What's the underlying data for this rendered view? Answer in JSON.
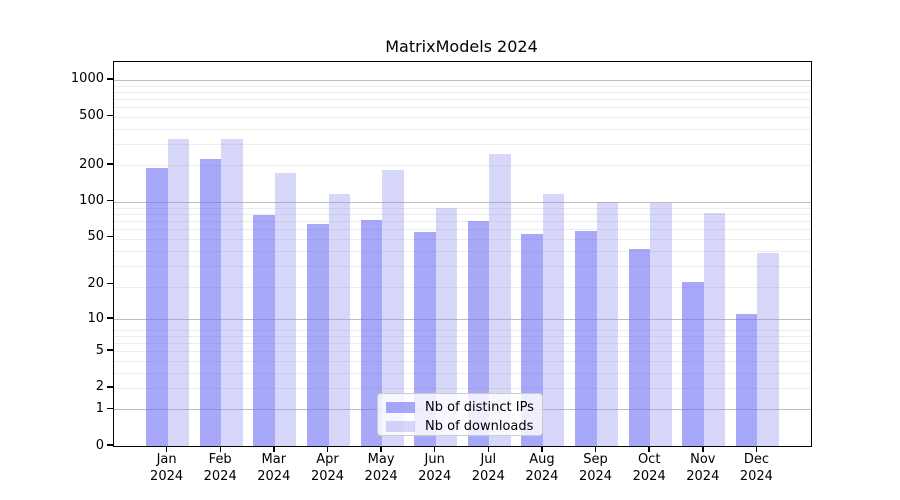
{
  "title": "MatrixModels 2024",
  "legend": {
    "position": "bottom-center-inside",
    "items": [
      {
        "label": "Nb of distinct IPs"
      },
      {
        "label": "Nb of downloads"
      }
    ]
  },
  "colors": {
    "distinct_ips_bar": "rgba(110,110,245,0.6)",
    "downloads_bar": "rgba(150,150,240,0.38)",
    "axis": "#000000",
    "grid_major": "#bdbdbd",
    "grid_minor": "#ececec",
    "legend_border": "#cccccc"
  },
  "chart_data": {
    "type": "bar",
    "title": "MatrixModels 2024",
    "xlabel": "",
    "ylabel": "",
    "y_scale": "log10(value+1)",
    "ylim": [
      0,
      1400
    ],
    "grid": true,
    "legend_position": "lower center inside plot",
    "categories": [
      {
        "month": "Jan",
        "year": "2024"
      },
      {
        "month": "Feb",
        "year": "2024"
      },
      {
        "month": "Mar",
        "year": "2024"
      },
      {
        "month": "Apr",
        "year": "2024"
      },
      {
        "month": "May",
        "year": "2024"
      },
      {
        "month": "Jun",
        "year": "2024"
      },
      {
        "month": "Jul",
        "year": "2024"
      },
      {
        "month": "Aug",
        "year": "2024"
      },
      {
        "month": "Sep",
        "year": "2024"
      },
      {
        "month": "Oct",
        "year": "2024"
      },
      {
        "month": "Nov",
        "year": "2024"
      },
      {
        "month": "Dec",
        "year": "2024"
      }
    ],
    "series": [
      {
        "key": "distinct-ips",
        "name": "Nb of distinct IPs",
        "color": "rgba(110,110,245,0.6)",
        "values": [
          190,
          225,
          78,
          65,
          70,
          56,
          69,
          54,
          57,
          40,
          21,
          11
        ]
      },
      {
        "key": "downloads",
        "name": "Nb of downloads",
        "color": "rgba(150,150,240,0.38)",
        "values": [
          325,
          330,
          173,
          115,
          182,
          89,
          245,
          115,
          100,
          97,
          80,
          37
        ]
      }
    ],
    "y_ticks": [
      0,
      1,
      2,
      5,
      10,
      20,
      50,
      100,
      200,
      500,
      1000
    ],
    "grid_major_values": [
      1,
      10,
      100,
      1000
    ]
  }
}
